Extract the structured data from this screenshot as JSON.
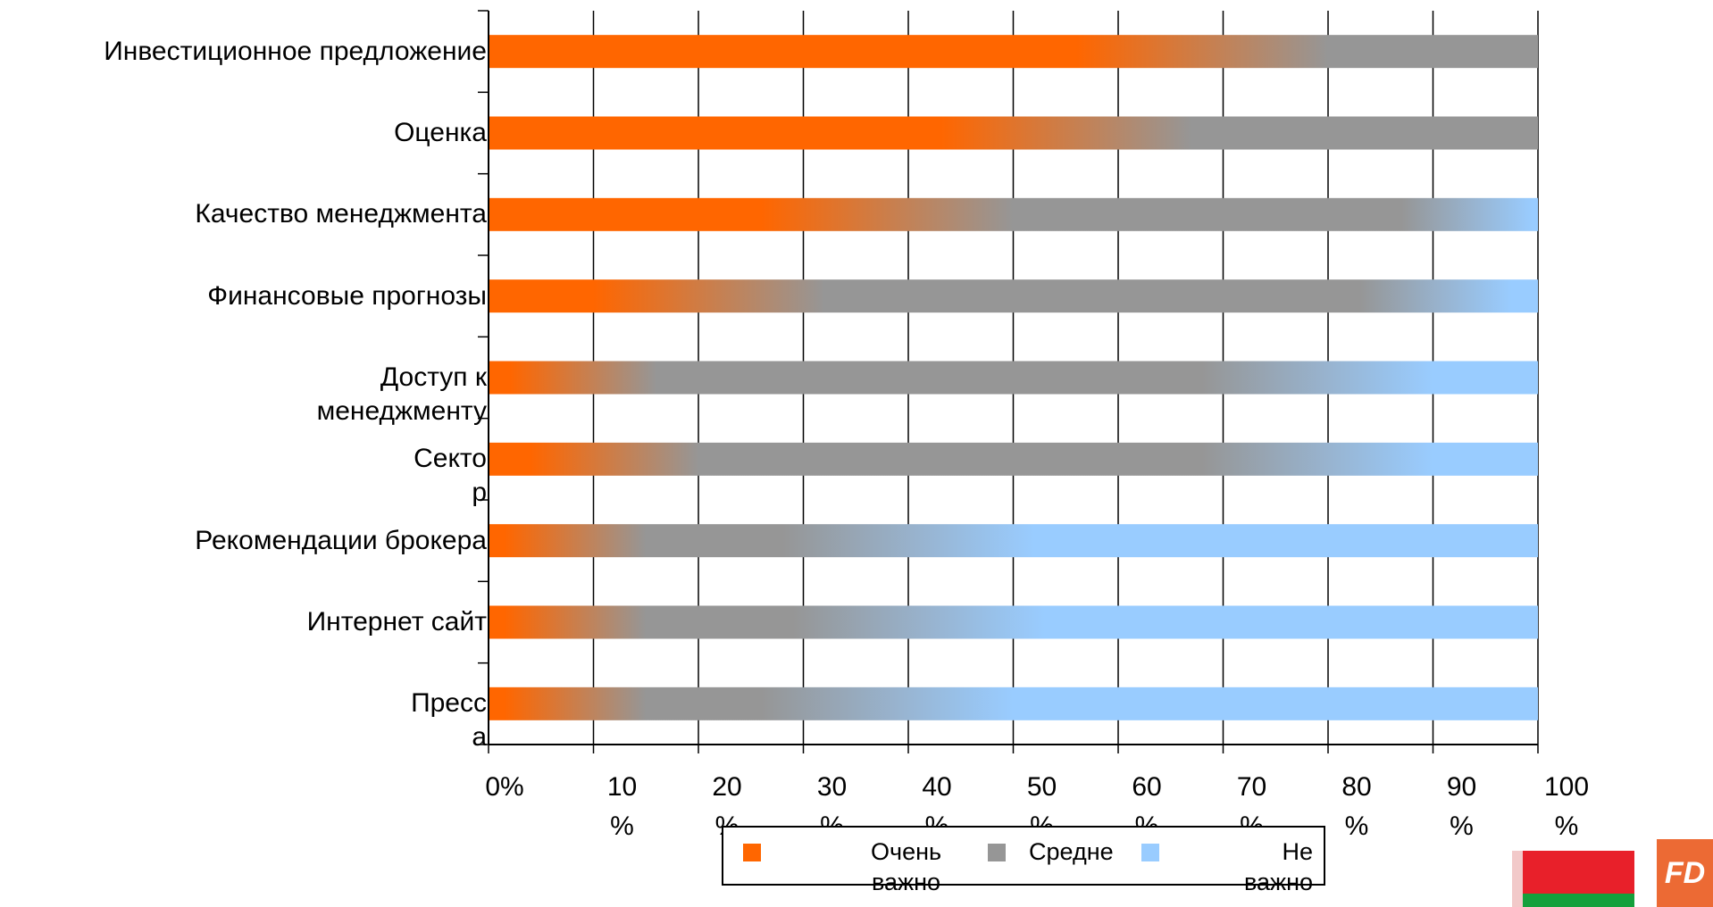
{
  "chart_data": {
    "type": "bar",
    "orientation": "horizontal",
    "stacked": "100%",
    "categories": [
      "Инвестиционное предложение",
      "Оценка",
      "Качество менеджмента",
      "Финансовые прогнозы",
      "Доступ к менеджменту",
      "Сектор",
      "Рекомендации брокера",
      "Интернет сайт",
      "Пресса"
    ],
    "category_lines": [
      [
        "Инвестиционное предложение"
      ],
      [
        "Оценка"
      ],
      [
        "Качество менеджмента"
      ],
      [
        "Финансовые прогнозы"
      ],
      [
        "Доступ к",
        "менеджменту"
      ],
      [
        "Секто",
        "р"
      ],
      [
        "Рекомендации брокера"
      ],
      [
        "Интернет сайт"
      ],
      [
        "Пресс",
        "а"
      ]
    ],
    "series": [
      {
        "name": "Очень важно",
        "color": "#ff6600",
        "values": [
          68,
          55,
          38,
          20,
          4,
          8,
          3,
          3,
          3
        ]
      },
      {
        "name": "Средне",
        "color": "#969696",
        "values": [
          32,
          45,
          61,
          75,
          76,
          72,
          37,
          38,
          35
        ]
      },
      {
        "name": "Не важно",
        "color": "#99ccff",
        "values": [
          0,
          0,
          1,
          5,
          20,
          20,
          60,
          59,
          62
        ]
      }
    ],
    "xlim": [
      0,
      100
    ],
    "x_ticks": [
      0,
      10,
      20,
      30,
      40,
      50,
      60,
      70,
      80,
      90,
      100
    ],
    "x_tick_labels": [
      [
        "0%"
      ],
      [
        "10",
        "%"
      ],
      [
        "20",
        "%"
      ],
      [
        "30",
        "%"
      ],
      [
        "40",
        "%"
      ],
      [
        "50",
        "%"
      ],
      [
        "60",
        "%"
      ],
      [
        "70",
        "%"
      ],
      [
        "80",
        "%"
      ],
      [
        "90",
        "%"
      ],
      [
        "100",
        "%"
      ]
    ],
    "grid": true,
    "legend_position": "bottom",
    "legend_items": [
      [
        "Очень",
        "важно"
      ],
      [
        "Средне"
      ],
      [
        "Не",
        "важно"
      ]
    ]
  },
  "logos": {
    "flag": "belarus-flag",
    "brand_text": "FD"
  }
}
